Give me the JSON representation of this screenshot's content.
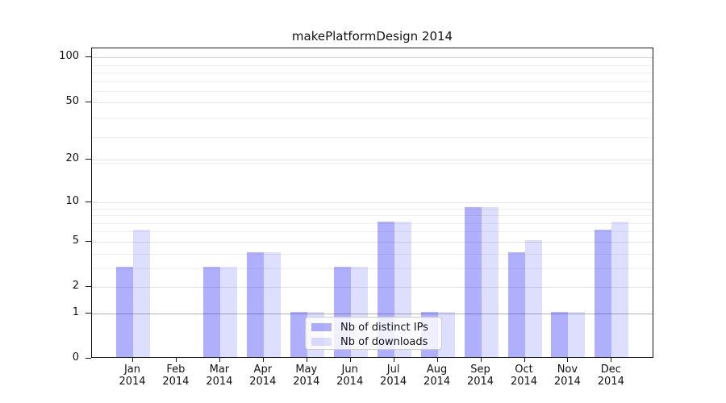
{
  "title": "makePlatformDesign 2014",
  "chart_data": {
    "type": "bar",
    "title": "makePlatformDesign 2014",
    "x_year": "2014",
    "categories": [
      "Jan",
      "Feb",
      "Mar",
      "Apr",
      "May",
      "Jun",
      "Jul",
      "Aug",
      "Sep",
      "Oct",
      "Nov",
      "Dec"
    ],
    "series": [
      {
        "key": "distinct-ips",
        "name": "Nb of distinct IPs",
        "values": [
          3,
          0,
          3,
          4,
          1,
          3,
          7,
          1,
          9,
          4,
          1,
          6
        ],
        "color": "rgba(20,20,245,0.34)"
      },
      {
        "key": "downloads",
        "name": "Nb of downloads",
        "values": [
          6,
          0,
          3,
          4,
          1,
          3,
          7,
          1,
          9,
          5,
          1,
          7
        ],
        "color": "rgba(20,20,245,0.14)"
      }
    ],
    "yscale": "log10(value+1)",
    "ylim": [
      0,
      113
    ],
    "yticks": [
      0,
      1,
      2,
      5,
      10,
      20,
      50,
      100
    ],
    "ytick_labels": [
      "0",
      "1",
      "2",
      "5",
      "10",
      "20",
      "50",
      "100"
    ],
    "grid": "horizontal",
    "grid_major": [
      2,
      5,
      10,
      20,
      50
    ],
    "grid_minor": [
      3,
      4,
      6,
      7,
      8,
      9,
      19,
      29,
      39,
      59,
      69,
      79,
      89
    ],
    "grid_unit_line": 1,
    "grid_top_line": 100,
    "legend_position": "lower-center-inside",
    "colors": {
      "axis": "#1a1a1a",
      "grid_major": "#e4e4e4",
      "grid_minor": "#efefef",
      "grid_unit": "#b2b2b2",
      "grid_top": "#d4d4d4"
    }
  }
}
